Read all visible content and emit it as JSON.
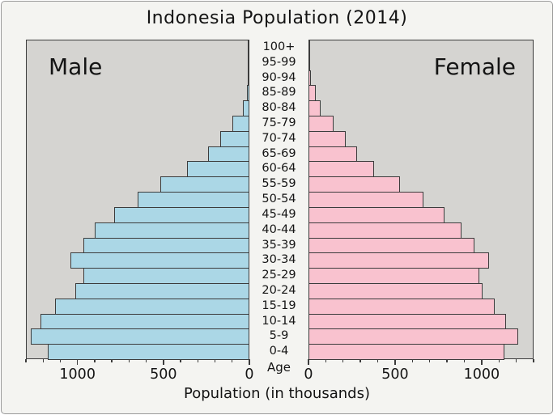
{
  "title": "Indonesia Population (2014)",
  "panels": {
    "male_label": "Male",
    "female_label": "Female"
  },
  "axis": {
    "age_axis_label": "Age",
    "x_axis_label": "Population (in thousands)",
    "male_tick_labels": [
      "1000",
      "500",
      "0"
    ],
    "female_tick_labels": [
      "0",
      "500",
      "1000"
    ]
  },
  "colors": {
    "male_bar": "#abd7e6",
    "female_bar": "#f9c2cf",
    "bar_edge": "#3c3c3c",
    "panel_bg": "#d5d4d1",
    "figure_bg": "#f4f4f1",
    "text": "#141414"
  },
  "chart_data": {
    "type": "bar",
    "subtype": "population-pyramid",
    "title": "Indonesia Population (2014)",
    "xlabel": "Population (in thousands)",
    "age_groups_top_to_bottom": [
      "100+",
      "95-99",
      "90-94",
      "85-89",
      "80-84",
      "75-79",
      "70-74",
      "65-69",
      "60-64",
      "55-59",
      "50-54",
      "45-49",
      "40-44",
      "35-39",
      "30-34",
      "25-29",
      "20-24",
      "15-19",
      "10-14",
      "5-9",
      "0-4"
    ],
    "series": [
      {
        "name": "Male",
        "side": "left",
        "values_top_to_bottom": [
          1,
          2,
          6,
          16,
          40,
          100,
          170,
          240,
          365,
          520,
          650,
          785,
          900,
          965,
          1040,
          965,
          1015,
          1130,
          1215,
          1270,
          1175
        ]
      },
      {
        "name": "Female",
        "side": "right",
        "values_top_to_bottom": [
          2,
          6,
          14,
          43,
          70,
          145,
          215,
          280,
          380,
          530,
          665,
          785,
          885,
          960,
          1045,
          985,
          1005,
          1075,
          1140,
          1210,
          1130
        ]
      }
    ],
    "axis_max": 1300,
    "ticks_major": [
      0,
      500,
      1000
    ],
    "tick_interval_minor": 100,
    "grid": false,
    "legend": "none"
  }
}
